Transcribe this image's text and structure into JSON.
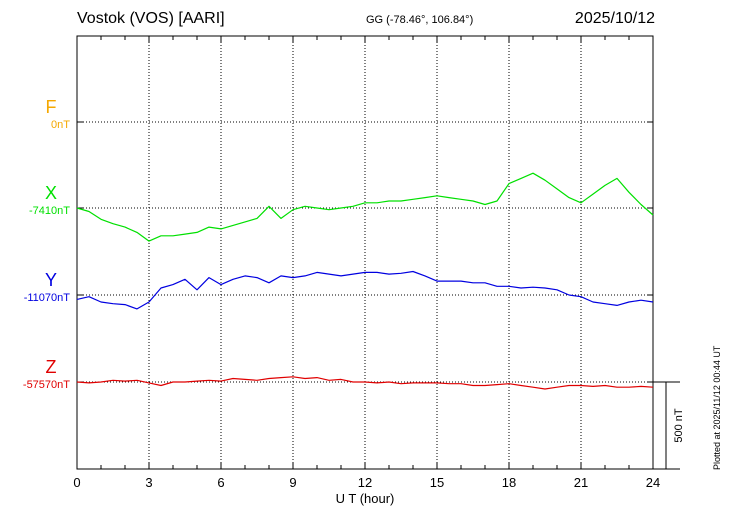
{
  "header": {
    "station": "Vostok (VOS)  [AARI]",
    "coords": "GG (-78.46°, 106.84°)",
    "date": "2025/10/12"
  },
  "footer": {
    "plotted": "Plotted at 2025/11/12 00:44 UT"
  },
  "chart_data": {
    "type": "line",
    "xlabel": "U T (hour)",
    "xlim": [
      0,
      24
    ],
    "xticks": [
      "0",
      "3",
      "6",
      "9",
      "12",
      "15",
      "18",
      "21",
      "24"
    ],
    "scale_bar_label": "500 nT",
    "scale_bar_nT": 500,
    "grid": true,
    "series": [
      {
        "name": "F",
        "baseline_label": "0nT",
        "color": "#f5a800",
        "x": [],
        "values": []
      },
      {
        "name": "X",
        "baseline_label": "-7410nT",
        "baseline": -7410,
        "color": "#00e000",
        "x": [
          0,
          0.5,
          1,
          1.5,
          2,
          2.5,
          3,
          3.5,
          4,
          4.5,
          5,
          5.5,
          6,
          6.5,
          7,
          7.5,
          8,
          8.5,
          9,
          9.5,
          10,
          10.5,
          11,
          11.5,
          12,
          12.5,
          13,
          13.5,
          14,
          14.5,
          15,
          15.5,
          16,
          16.5,
          17,
          17.5,
          18,
          18.5,
          19,
          19.5,
          20,
          20.5,
          21,
          21.5,
          22,
          22.5,
          23,
          23.5,
          24
        ],
        "values": [
          -7410,
          -7430,
          -7475,
          -7500,
          -7520,
          -7550,
          -7600,
          -7570,
          -7570,
          -7560,
          -7550,
          -7520,
          -7530,
          -7510,
          -7490,
          -7470,
          -7400,
          -7470,
          -7420,
          -7400,
          -7410,
          -7420,
          -7410,
          -7400,
          -7380,
          -7380,
          -7370,
          -7370,
          -7360,
          -7350,
          -7340,
          -7350,
          -7360,
          -7370,
          -7390,
          -7370,
          -7270,
          -7240,
          -7210,
          -7250,
          -7300,
          -7350,
          -7380,
          -7330,
          -7280,
          -7240,
          -7320,
          -7390,
          -7450
        ]
      },
      {
        "name": "Y",
        "baseline_label": "-11070nT",
        "baseline": -11070,
        "color": "#0000e0",
        "x": [
          0,
          0.5,
          1,
          1.5,
          2,
          2.5,
          3,
          3.5,
          4,
          4.5,
          5,
          5.5,
          6,
          6.5,
          7,
          7.5,
          8,
          8.5,
          9,
          9.5,
          10,
          10.5,
          11,
          11.5,
          12,
          12.5,
          13,
          13.5,
          14,
          14.5,
          15,
          15.5,
          16,
          16.5,
          17,
          17.5,
          18,
          18.5,
          19,
          19.5,
          20,
          20.5,
          21,
          21.5,
          22,
          22.5,
          23,
          23.5,
          24
        ],
        "values": [
          -11095,
          -11080,
          -11110,
          -11120,
          -11125,
          -11150,
          -11110,
          -11030,
          -11010,
          -10980,
          -11040,
          -10970,
          -11010,
          -10980,
          -10960,
          -10970,
          -11000,
          -10960,
          -10970,
          -10960,
          -10940,
          -10950,
          -10960,
          -10950,
          -10940,
          -10940,
          -10950,
          -10945,
          -10935,
          -10960,
          -10990,
          -10990,
          -10990,
          -11000,
          -11000,
          -11020,
          -11020,
          -11030,
          -11025,
          -11030,
          -11040,
          -11070,
          -11080,
          -11110,
          -11120,
          -11130,
          -11110,
          -11100,
          -11110
        ]
      },
      {
        "name": "Z",
        "baseline_label": "-57570nT",
        "baseline": -57570,
        "color": "#e00000",
        "x": [
          0,
          0.5,
          1,
          1.5,
          2,
          2.5,
          3,
          3.5,
          4,
          4.5,
          5,
          5.5,
          6,
          6.5,
          7,
          7.5,
          8,
          8.5,
          9,
          9.5,
          10,
          10.5,
          11,
          11.5,
          12,
          12.5,
          13,
          13.5,
          14,
          14.5,
          15,
          15.5,
          16,
          16.5,
          17,
          17.5,
          18,
          18.5,
          19,
          19.5,
          20,
          20.5,
          21,
          21.5,
          22,
          22.5,
          23,
          23.5,
          24
        ],
        "values": [
          -57570,
          -57575,
          -57570,
          -57560,
          -57565,
          -57560,
          -57575,
          -57590,
          -57570,
          -57570,
          -57565,
          -57560,
          -57565,
          -57550,
          -57555,
          -57560,
          -57550,
          -57545,
          -57540,
          -57550,
          -57545,
          -57560,
          -57555,
          -57570,
          -57570,
          -57575,
          -57570,
          -57580,
          -57575,
          -57575,
          -57575,
          -57580,
          -57580,
          -57590,
          -57590,
          -57585,
          -57580,
          -57590,
          -57600,
          -57610,
          -57600,
          -57590,
          -57590,
          -57595,
          -57590,
          -57600,
          -57600,
          -57595,
          -57600
        ]
      }
    ]
  }
}
